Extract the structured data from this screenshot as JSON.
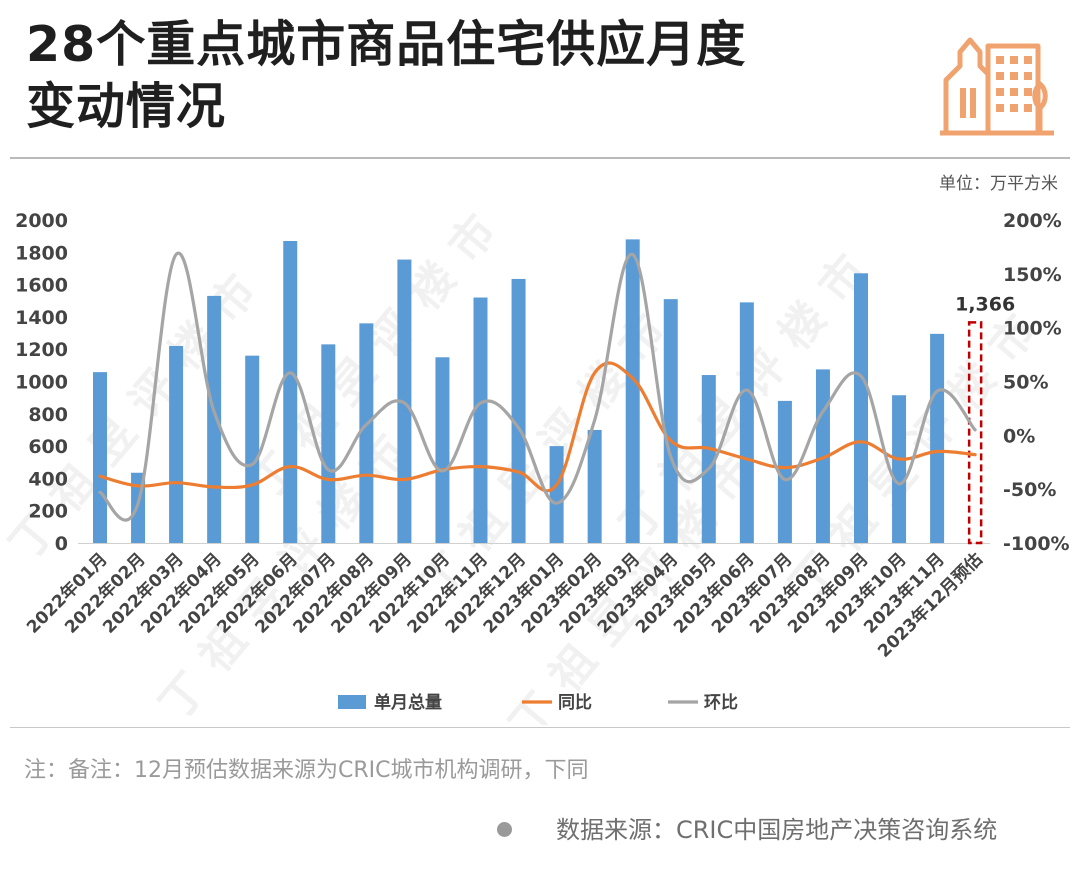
{
  "title_line1": "28个重点城市商品住宅供应月度",
  "title_line2": "变动情况",
  "watermark": "丁祖昱评楼市",
  "note": "注：备注：12月预估数据来源为CRIC城市机构调研，下同",
  "source": "数据来源：CRIC中国房地产决策咨询系统",
  "colors": {
    "bar": "#5B9BD5",
    "yoy": "#ED7D31",
    "mom": "#A5A5A5",
    "estimate": "#C00000",
    "logo": "#F0A36E"
  },
  "chart_data": {
    "type": "bar+line",
    "unit_label": "单位：万平方米",
    "categories": [
      "2022年01月",
      "2022年02月",
      "2022年03月",
      "2022年04月",
      "2022年05月",
      "2022年06月",
      "2022年07月",
      "2022年08月",
      "2022年09月",
      "2022年10月",
      "2022年11月",
      "2022年12月",
      "2023年01月",
      "2023年02月",
      "2023年03月",
      "2023年04月",
      "2023年05月",
      "2023年06月",
      "2023年07月",
      "2023年08月",
      "2023年09月",
      "2023年10月",
      "2023年11月",
      "2023年12月预估"
    ],
    "series": [
      {
        "name": "单月总量",
        "axis": "left",
        "kind": "bar",
        "values": [
          1058,
          435,
          1220,
          1530,
          1160,
          1870,
          1230,
          1360,
          1755,
          1150,
          1520,
          1635,
          600,
          700,
          1880,
          1510,
          1040,
          1490,
          880,
          1075,
          1670,
          915,
          1295,
          1366
        ]
      },
      {
        "name": "同比",
        "axis": "right",
        "kind": "line",
        "values": [
          -38,
          -47,
          -44,
          -48,
          -46,
          -29,
          -41,
          -37,
          -41,
          -32,
          -29,
          -34,
          -46,
          58,
          53,
          -5,
          -12,
          -22,
          -30,
          -21,
          -6,
          -22,
          -15,
          -18
        ]
      },
      {
        "name": "环比",
        "axis": "right",
        "kind": "line",
        "values": [
          -53,
          -63,
          168,
          22,
          -27,
          58,
          -32,
          10,
          30,
          -33,
          30,
          7,
          -63,
          14,
          168,
          -20,
          -31,
          42,
          -41,
          22,
          55,
          -45,
          41,
          5
        ]
      }
    ],
    "estimate_label": "1,366",
    "left_axis": {
      "ylim": [
        0,
        2000
      ],
      "ticks": [
        "0",
        "200",
        "400",
        "600",
        "800",
        "1000",
        "1200",
        "1400",
        "1600",
        "1800",
        "2000"
      ]
    },
    "right_axis": {
      "ylim": [
        -100,
        200
      ],
      "ticks": [
        "-100%",
        "-50%",
        "0%",
        "50%",
        "100%",
        "150%",
        "200%"
      ]
    },
    "legend": [
      "单月总量",
      "同比",
      "环比"
    ],
    "legend_position": "bottom",
    "grid": false
  }
}
